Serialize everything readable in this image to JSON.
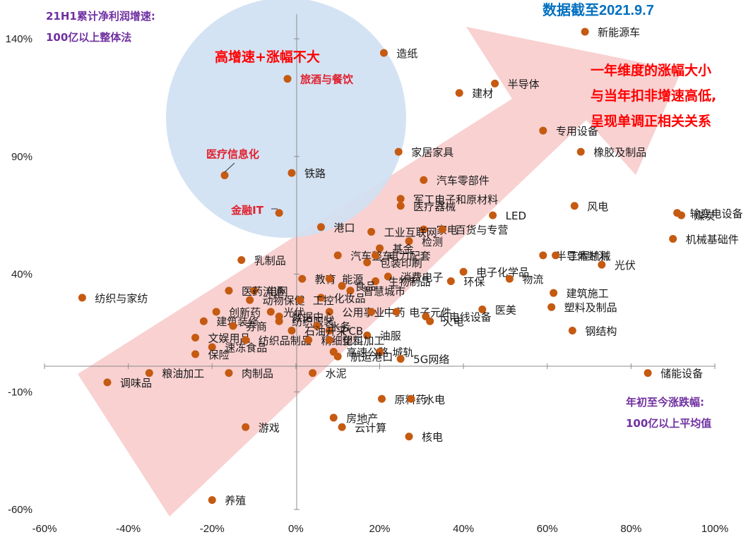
{
  "chart_data": {
    "type": "scatter",
    "title": "",
    "y_axis_caption": [
      "21H1累计净利润增速:",
      "100亿以上整体法"
    ],
    "x_axis_caption": [
      "年初至今涨跌幅:",
      "100亿以上平均值"
    ],
    "date_note": "数据截至2021.9.7",
    "circle_annotation": "高增速+涨幅不大",
    "arrow_annotation": [
      "一年维度的涨幅大小",
      "与当年扣非增速高低,",
      "呈现单调正相关关系"
    ],
    "x_ticks": [
      "-60%",
      "-40%",
      "-20%",
      "0%",
      "20%",
      "40%",
      "60%",
      "80%",
      "100%"
    ],
    "y_ticks": [
      "140%",
      "90%",
      "40%",
      "-10%",
      "-60%"
    ],
    "xlim": [
      -60,
      100
    ],
    "ylim": [
      -60,
      140
    ],
    "marker_color": "#c55a11",
    "arrow_color": "#f8c9c9",
    "circle_color": "#cfe0f2",
    "highlight_color": "#e0202e",
    "points": [
      {
        "label": "新能源车",
        "x": 69,
        "y": 143
      },
      {
        "label": "造纸",
        "x": 21,
        "y": 134
      },
      {
        "label": "旅酒与餐饮",
        "x": -2,
        "y": 123,
        "hl": true
      },
      {
        "label": "半导体",
        "x": 47.5,
        "y": 121
      },
      {
        "label": "建材",
        "x": 39,
        "y": 117
      },
      {
        "label": "专用设备",
        "x": 59,
        "y": 101
      },
      {
        "label": "家居家具",
        "x": 24.5,
        "y": 92
      },
      {
        "label": "橡胶及制品",
        "x": 68,
        "y": 92
      },
      {
        "label": "铁路",
        "x": -1,
        "y": 83
      },
      {
        "label": "医疗信息化",
        "x": -17,
        "y": 82,
        "hl": true
      },
      {
        "label": "汽车零部件",
        "x": 30.5,
        "y": 80
      },
      {
        "label": "军工电子和原材料",
        "x": 25,
        "y": 72
      },
      {
        "label": "医疗器械",
        "x": 25,
        "y": 69
      },
      {
        "label": "风电",
        "x": 66.5,
        "y": 69
      },
      {
        "label": "输变电设备",
        "x": 91,
        "y": 66
      },
      {
        "label": "煤炭",
        "x": 92,
        "y": 65
      },
      {
        "label": "金融IT",
        "x": -4,
        "y": 66,
        "hl": true
      },
      {
        "label": "LED",
        "x": 47,
        "y": 65
      },
      {
        "label": "港口",
        "x": 6,
        "y": 60
      },
      {
        "label": "家电",
        "x": 30.5,
        "y": 59
      },
      {
        "label": "百货与专营",
        "x": 35,
        "y": 59
      },
      {
        "label": "工业互联网",
        "x": 18,
        "y": 58
      },
      {
        "label": "机械基础件",
        "x": 90,
        "y": 55
      },
      {
        "label": "检测",
        "x": 27,
        "y": 54
      },
      {
        "label": "基金",
        "x": 20,
        "y": 51
      },
      {
        "label": "乳制品",
        "x": -13,
        "y": 46
      },
      {
        "label": "半导体封测",
        "x": 59,
        "y": 48
      },
      {
        "label": "汽车整车",
        "x": 10,
        "y": 48
      },
      {
        "label": "电力配套",
        "x": 19,
        "y": 48
      },
      {
        "label": "工程机械",
        "x": 62,
        "y": 48
      },
      {
        "label": "光伏",
        "x": 73,
        "y": 44
      },
      {
        "label": "包装印刷",
        "x": 17,
        "y": 45
      },
      {
        "label": "电子化学品",
        "x": 40,
        "y": 41
      },
      {
        "label": "消费电子",
        "x": 22,
        "y": 39
      },
      {
        "label": "物流",
        "x": 51,
        "y": 38
      },
      {
        "label": "环保",
        "x": 37,
        "y": 37
      },
      {
        "label": "教育",
        "x": 1.5,
        "y": 38
      },
      {
        "label": "能源",
        "x": 8,
        "y": 38
      },
      {
        "label": "生物制品",
        "x": 19,
        "y": 37
      },
      {
        "label": "食品",
        "x": 11,
        "y": 35
      },
      {
        "label": "纺织与家纺",
        "x": -51,
        "y": 30
      },
      {
        "label": "建筑施工",
        "x": 61.5,
        "y": 32
      },
      {
        "label": "电网",
        "x": -10,
        "y": 33
      },
      {
        "label": "医药流通",
        "x": -16,
        "y": 33
      },
      {
        "label": "智慧城市",
        "x": 13,
        "y": 33
      },
      {
        "label": "化妆品",
        "x": 6,
        "y": 30
      },
      {
        "label": "动物保健",
        "x": -11,
        "y": 29
      },
      {
        "label": "工控",
        "x": 1,
        "y": 29
      },
      {
        "label": "塑料及制品",
        "x": 61,
        "y": 26
      },
      {
        "label": "医美",
        "x": 44.5,
        "y": 25
      },
      {
        "label": "创新药",
        "x": -19,
        "y": 24
      },
      {
        "label": "光伏",
        "x": -6,
        "y": 24
      },
      {
        "label": "公用事业",
        "x": 8,
        "y": 24
      },
      {
        "label": "中药",
        "x": 18,
        "y": 24
      },
      {
        "label": "电子元件",
        "x": 24,
        "y": 24
      },
      {
        "label": "长电线设备",
        "x": 31,
        "y": 22
      },
      {
        "label": "火电",
        "x": 32,
        "y": 20
      },
      {
        "label": "数据中心",
        "x": -4,
        "y": 22
      },
      {
        "label": "建筑装修",
        "x": -22,
        "y": 20
      },
      {
        "label": "纺织服装",
        "x": -4,
        "y": 20
      },
      {
        "label": "券商",
        "x": -15,
        "y": 18
      },
      {
        "label": "水务",
        "x": 5,
        "y": 18
      },
      {
        "label": "PCB",
        "x": 8,
        "y": 16
      },
      {
        "label": "钢结构",
        "x": 66,
        "y": 16
      },
      {
        "label": "石油开采",
        "x": -1,
        "y": 16
      },
      {
        "label": "油服",
        "x": 17,
        "y": 14
      },
      {
        "label": "文娱用品",
        "x": -24,
        "y": 13
      },
      {
        "label": "纺织品制品",
        "x": -12,
        "y": 12
      },
      {
        "label": "精细化工",
        "x": 3,
        "y": 12
      },
      {
        "label": "塑料加工",
        "x": 8,
        "y": 12
      },
      {
        "label": "速冻食品",
        "x": -20,
        "y": 9
      },
      {
        "label": "保险",
        "x": -24,
        "y": 6
      },
      {
        "label": "高速公路",
        "x": 9,
        "y": 7
      },
      {
        "label": "城轨",
        "x": 20,
        "y": 7
      },
      {
        "label": "航运港口",
        "x": 10,
        "y": 5
      },
      {
        "label": "5G网络",
        "x": 25,
        "y": 4
      },
      {
        "label": "粮油加工",
        "x": -35,
        "y": -2
      },
      {
        "label": "肉制品",
        "x": -16,
        "y": -2
      },
      {
        "label": "水泥",
        "x": 4,
        "y": -2
      },
      {
        "label": "储能设备",
        "x": 84,
        "y": -2
      },
      {
        "label": "调味品",
        "x": -45,
        "y": -6
      },
      {
        "label": "原料药",
        "x": 20.5,
        "y": -13
      },
      {
        "label": "水电",
        "x": 27.5,
        "y": -13
      },
      {
        "label": "房地产",
        "x": 9,
        "y": -21
      },
      {
        "label": "云计算",
        "x": 11,
        "y": -25
      },
      {
        "label": "游戏",
        "x": -12,
        "y": -25
      },
      {
        "label": "核电",
        "x": 27,
        "y": -29
      },
      {
        "label": "养殖",
        "x": -20,
        "y": -56
      }
    ]
  }
}
